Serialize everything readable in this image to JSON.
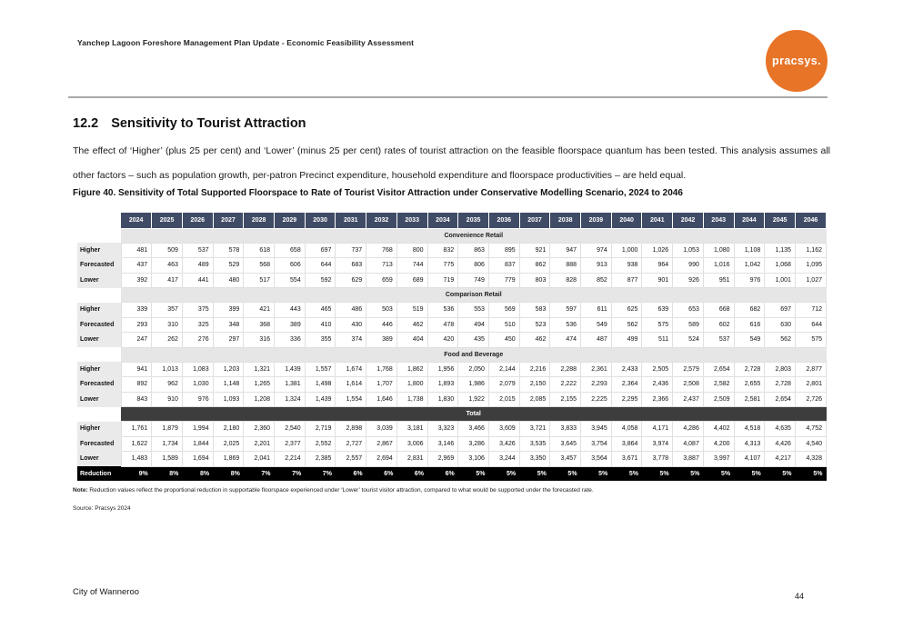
{
  "header": {
    "title": "Yanchep Lagoon Foreshore Management Plan Update - Economic Feasibility Assessment",
    "logo_text": "pracsys."
  },
  "section": {
    "number": "12.2",
    "title": "Sensitivity to Tourist Attraction",
    "paragraph": "The effect of ‘Higher’ (plus 25 per cent) and ‘Lower’ (minus 25 per cent) rates of tourist attraction on the feasible floorspace quantum has been tested. This analysis assumes all other factors – such as population growth, per-patron Precinct expenditure, household expenditure and floorspace productivities – are held equal."
  },
  "figure": {
    "caption": "Figure 40. Sensitivity of Total Supported Floorspace to Rate of Tourist Visitor Attraction under Conservative Modelling Scenario, 2024 to 2046",
    "note_label": "Note:",
    "note_text": " Reduction values reflect the proportional reduction in supportable floorspace experienced under ‘Lower’ tourist visitor attraction, compared to what would be supported under the forecasted rate.",
    "source": "Source: Pracsys 2024"
  },
  "footer": {
    "left": "City of Wanneroo",
    "page_number": "44"
  },
  "colors": {
    "accent_orange": "#E87428",
    "table_header_navy": "#404C66",
    "band_gray": "#E6E6E6",
    "total_band_dark": "#3D3D3D",
    "reduction_black": "#000000"
  },
  "chart_data": {
    "type": "table",
    "title": "Sensitivity of Total Supported Floorspace to Rate of Tourist Visitor Attraction under Conservative Modelling Scenario, 2024 to 2046",
    "years": [
      2024,
      2025,
      2026,
      2027,
      2028,
      2029,
      2030,
      2031,
      2032,
      2033,
      2034,
      2035,
      2036,
      2037,
      2038,
      2039,
      2040,
      2041,
      2042,
      2043,
      2044,
      2045,
      2046
    ],
    "sections": [
      {
        "name": "Convenience Retail",
        "rows": [
          {
            "label": "Higher",
            "values": [
              481,
              509,
              537,
              578,
              618,
              658,
              697,
              737,
              768,
              800,
              832,
              863,
              895,
              921,
              947,
              974,
              1000,
              1026,
              1053,
              1080,
              1108,
              1135,
              1162
            ]
          },
          {
            "label": "Forecasted",
            "values": [
              437,
              463,
              489,
              529,
              568,
              606,
              644,
              683,
              713,
              744,
              775,
              806,
              837,
              862,
              888,
              913,
              938,
              964,
              990,
              1016,
              1042,
              1068,
              1095
            ]
          },
          {
            "label": "Lower",
            "values": [
              392,
              417,
              441,
              480,
              517,
              554,
              592,
              629,
              659,
              689,
              719,
              749,
              779,
              803,
              828,
              852,
              877,
              901,
              926,
              951,
              976,
              1001,
              1027
            ]
          }
        ]
      },
      {
        "name": "Comparison Retail",
        "rows": [
          {
            "label": "Higher",
            "values": [
              339,
              357,
              375,
              399,
              421,
              443,
              465,
              486,
              503,
              519,
              536,
              553,
              569,
              583,
              597,
              611,
              625,
              639,
              653,
              668,
              682,
              697,
              712
            ]
          },
          {
            "label": "Forecasted",
            "values": [
              293,
              310,
              325,
              348,
              368,
              389,
              410,
              430,
              446,
              462,
              478,
              494,
              510,
              523,
              536,
              549,
              562,
              575,
              589,
              602,
              616,
              630,
              644
            ]
          },
          {
            "label": "Lower",
            "values": [
              247,
              262,
              276,
              297,
              316,
              336,
              355,
              374,
              389,
              404,
              420,
              435,
              450,
              462,
              474,
              487,
              499,
              511,
              524,
              537,
              549,
              562,
              575
            ]
          }
        ]
      },
      {
        "name": "Food and Beverage",
        "rows": [
          {
            "label": "Higher",
            "values": [
              941,
              1013,
              1083,
              1203,
              1321,
              1439,
              1557,
              1674,
              1768,
              1862,
              1956,
              2050,
              2144,
              2216,
              2288,
              2361,
              2433,
              2505,
              2579,
              2654,
              2728,
              2803,
              2877
            ]
          },
          {
            "label": "Forecasted",
            "values": [
              892,
              962,
              1030,
              1148,
              1265,
              1381,
              1498,
              1614,
              1707,
              1800,
              1893,
              1986,
              2079,
              2150,
              2222,
              2293,
              2364,
              2436,
              2508,
              2582,
              2655,
              2728,
              2801
            ]
          },
          {
            "label": "Lower",
            "values": [
              843,
              910,
              976,
              1093,
              1208,
              1324,
              1439,
              1554,
              1646,
              1738,
              1830,
              1922,
              2015,
              2085,
              2155,
              2225,
              2295,
              2366,
              2437,
              2509,
              2581,
              2654,
              2726
            ]
          }
        ]
      },
      {
        "name": "Total",
        "rows": [
          {
            "label": "Higher",
            "values": [
              1761,
              1879,
              1994,
              2180,
              2360,
              2540,
              2719,
              2898,
              3039,
              3181,
              3323,
              3466,
              3609,
              3721,
              3833,
              3945,
              4058,
              4171,
              4286,
              4402,
              4518,
              4635,
              4752
            ]
          },
          {
            "label": "Forecasted",
            "values": [
              1622,
              1734,
              1844,
              2025,
              2201,
              2377,
              2552,
              2727,
              2867,
              3006,
              3146,
              3286,
              3426,
              3535,
              3645,
              3754,
              3864,
              3974,
              4087,
              4200,
              4313,
              4426,
              4540
            ]
          },
          {
            "label": "Lower",
            "values": [
              1483,
              1589,
              1694,
              1869,
              2041,
              2214,
              2385,
              2557,
              2694,
              2831,
              2969,
              3106,
              3244,
              3350,
              3457,
              3564,
              3671,
              3778,
              3887,
              3997,
              4107,
              4217,
              4328
            ]
          }
        ]
      }
    ],
    "reduction": {
      "label": "Reduction",
      "values": [
        "9%",
        "8%",
        "8%",
        "8%",
        "7%",
        "7%",
        "7%",
        "6%",
        "6%",
        "6%",
        "6%",
        "5%",
        "5%",
        "5%",
        "5%",
        "5%",
        "5%",
        "5%",
        "5%",
        "5%",
        "5%",
        "5%",
        "5%"
      ]
    }
  }
}
